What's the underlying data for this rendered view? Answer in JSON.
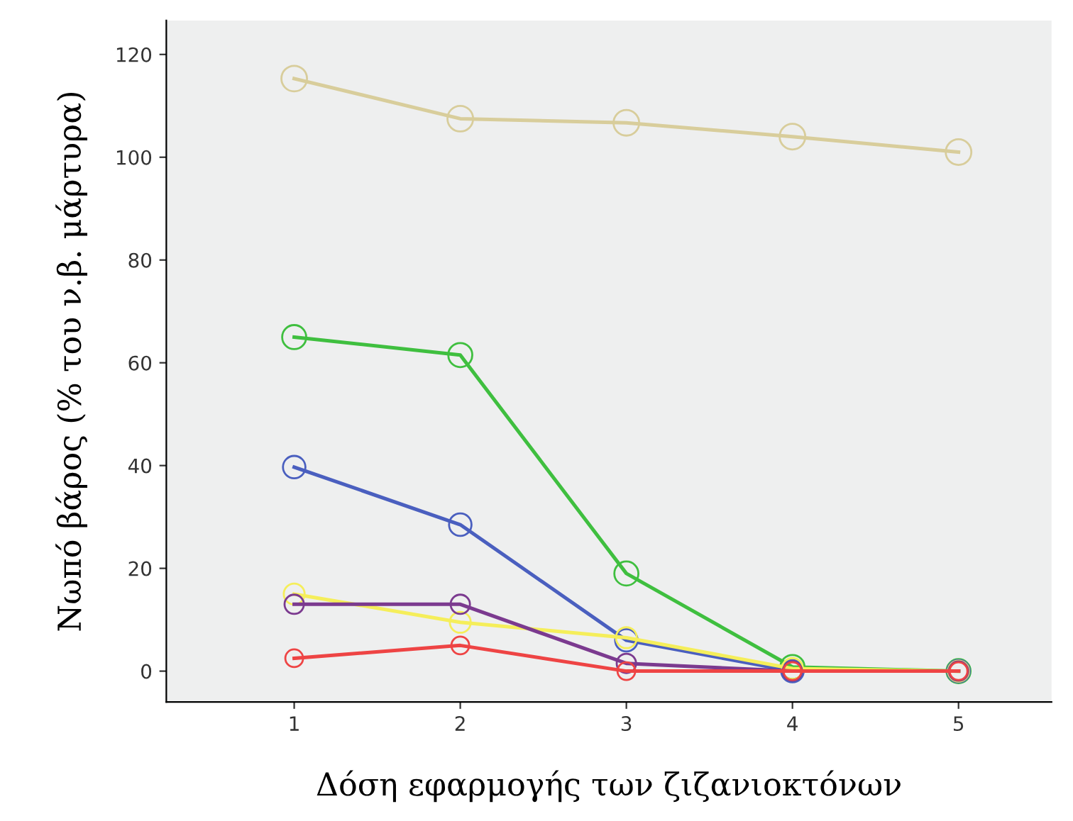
{
  "chart_data": {
    "type": "line",
    "xlabel": "Δόση εφαρμογής των ζιζανιοκτόνων",
    "ylabel": "Νωπό βάρος (% του ν.β. μάρτυρα)",
    "x": [
      1,
      2,
      3,
      4,
      5
    ],
    "series": [
      {
        "color": "#d8cd9b",
        "values": [
          115.3,
          107.5,
          106.7,
          104,
          101
        ]
      },
      {
        "color": "#3fbf3f",
        "values": [
          65,
          61.5,
          19,
          0.8,
          0
        ]
      },
      {
        "color": "#4a5fbf",
        "values": [
          39.7,
          28.5,
          6,
          0,
          0
        ]
      },
      {
        "color": "#f5ee5a",
        "values": [
          15,
          9.5,
          6.5,
          0.5,
          0
        ]
      },
      {
        "color": "#7b3a8f",
        "values": [
          13,
          13,
          1.5,
          0,
          0
        ]
      },
      {
        "color": "#ee4444",
        "values": [
          2.5,
          5,
          0,
          0,
          0
        ]
      }
    ],
    "xlim": [
      0.23,
      5.56
    ],
    "ylim": [
      -6,
      126.6
    ],
    "xticks": [
      1,
      2,
      3,
      4,
      5
    ],
    "yticks": [
      0,
      20,
      40,
      60,
      80,
      100,
      120
    ],
    "grid": false,
    "marker": "circle",
    "line_style": "solid"
  }
}
